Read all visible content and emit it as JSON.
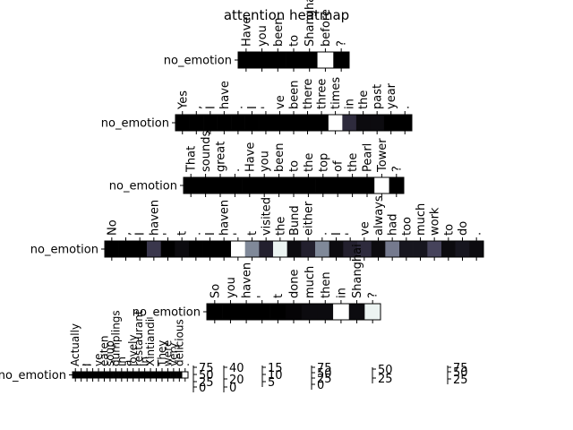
{
  "chart_data": {
    "type": "heatmap",
    "title": "attention heatmap",
    "colormap": [
      "#000000",
      "#2e2b3d",
      "#5d5a78",
      "#8c99a4",
      "#d8e8e4",
      "#ffffff"
    ],
    "rows": [
      {
        "ylabel": "no_emotion",
        "tokens": [
          "Have",
          "you",
          "been",
          "to",
          "Shanghai",
          "before",
          "?"
        ],
        "values": [
          0.0,
          0.0,
          0.0,
          0.0,
          0.0,
          1.0,
          0.0
        ]
      },
      {
        "ylabel": "no_emotion",
        "tokens": [
          "Yes",
          ",",
          "I",
          "have",
          ".",
          "I",
          "'",
          "ve",
          "been",
          "there",
          "three",
          "times",
          "in",
          "the",
          "past",
          "year",
          "."
        ],
        "values": [
          0.0,
          0.0,
          0.0,
          0.0,
          0.0,
          0.0,
          0.0,
          0.0,
          0.0,
          0.0,
          0.0,
          1.0,
          0.2,
          0.05,
          0.05,
          0.0,
          0.0
        ]
      },
      {
        "ylabel": "no_emotion",
        "tokens": [
          "That",
          "sounds",
          "great",
          ".",
          "Have",
          "you",
          "been",
          "to",
          "the",
          "top",
          "of",
          "the",
          "Pearl",
          "Tower",
          "?"
        ],
        "values": [
          0.0,
          0.0,
          0.0,
          0.0,
          0.0,
          0.0,
          0.0,
          0.0,
          0.0,
          0.0,
          0.0,
          0.0,
          0.0,
          1.0,
          0.0
        ]
      },
      {
        "ylabel": "no_emotion",
        "tokens": [
          "No",
          ",",
          "I",
          "haven",
          "'",
          "t",
          ".",
          "I",
          "haven",
          "'",
          "t",
          "visited",
          "the",
          "Bund",
          "either",
          ".",
          "I",
          "'",
          "ve",
          "always",
          "had",
          "too",
          "much",
          "work",
          "to",
          "do",
          "."
        ],
        "values": [
          0.0,
          0.0,
          0.0,
          0.25,
          0.0,
          0.05,
          0.0,
          0.0,
          0.0,
          1.0,
          0.55,
          0.15,
          0.9,
          0.05,
          0.15,
          0.55,
          0.05,
          0.15,
          0.2,
          0.05,
          0.5,
          0.1,
          0.1,
          0.3,
          0.05,
          0.1,
          0.05
        ]
      },
      {
        "ylabel": "no_emotion",
        "tokens": [
          "So",
          "you",
          "haven",
          "'",
          "t",
          "done",
          "much",
          "then",
          "in",
          "Shanghai",
          "?"
        ],
        "values": [
          0.0,
          0.0,
          0.0,
          0.0,
          0.0,
          0.02,
          0.05,
          0.05,
          1.0,
          0.05,
          0.9
        ]
      },
      {
        "ylabel": "no_emotion",
        "tokens": [
          "Actually",
          ",",
          "I",
          "'",
          "ve",
          "eaten",
          "soup",
          "dumplings",
          "in",
          "a",
          "lovely",
          "restaurant",
          "in",
          "Xintiandi",
          ".",
          "They",
          "were",
          "very",
          "delicious",
          "."
        ],
        "values": [
          0.0,
          0.0,
          0.0,
          0.0,
          0.0,
          0.0,
          0.0,
          0.0,
          0.0,
          0.0,
          0.0,
          0.0,
          0.0,
          0.0,
          0.0,
          0.0,
          0.0,
          0.0,
          0.0,
          1.0
        ]
      }
    ],
    "stray_ticks": [
      {
        "labels": [
          "75",
          "50",
          "25",
          "0"
        ]
      },
      {
        "labels": [
          "40",
          "20",
          "0"
        ]
      },
      {
        "labels": [
          "15",
          "10",
          "5"
        ]
      },
      {
        "labels": [
          "75",
          "50",
          "25",
          "0"
        ]
      },
      {
        "labels": [
          "50",
          "25"
        ]
      },
      {
        "labels": [
          "75",
          "50",
          "25"
        ]
      }
    ]
  }
}
